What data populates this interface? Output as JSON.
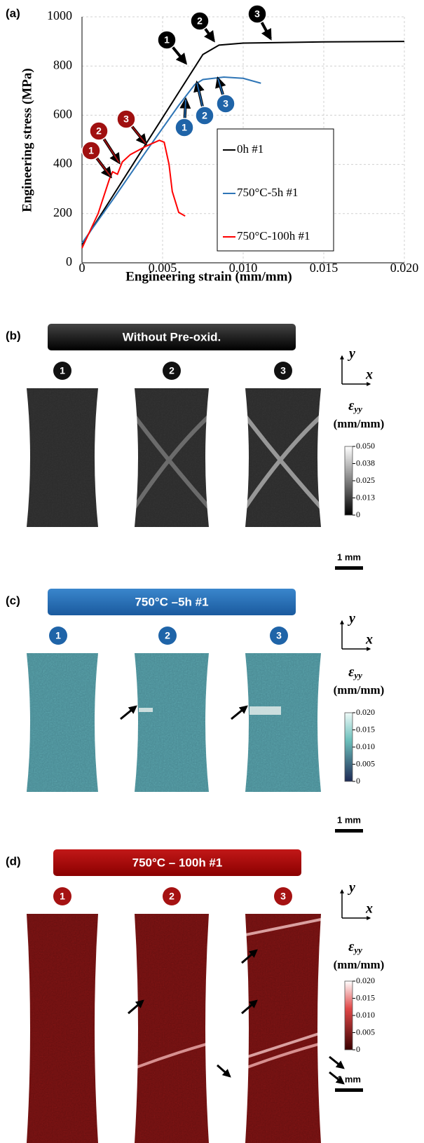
{
  "chart_data": {
    "type": "line",
    "label": "(a)",
    "x_label": "Engineering strain (mm/mm)",
    "y_label": "Engineering stress (MPa)",
    "xlim": [
      0,
      0.02
    ],
    "ylim": [
      0,
      1000
    ],
    "xticks": [
      0,
      0.005,
      {
        "value": 0.01,
        "label": "0.010"
      },
      0.015,
      {
        "value": 0.02,
        "label": "0.020"
      }
    ],
    "yticks": [
      0,
      200,
      400,
      600,
      800,
      1000
    ],
    "grid": true,
    "legend": "lower right",
    "series": [
      {
        "name": "0h #1",
        "color": "#000000",
        "markers": [
          "1",
          "2",
          "3"
        ],
        "x": [
          0,
          0.002,
          0.004,
          0.006,
          0.0075,
          0.0085,
          0.01,
          0.015,
          0.02
        ],
        "values": [
          75,
          281,
          487,
          693,
          847,
          885,
          893,
          898,
          900
        ]
      },
      {
        "name": "750°C-5h #1",
        "color": "#2e75b6",
        "markers": [
          "1",
          "2",
          "3"
        ],
        "x": [
          0,
          0.002,
          0.004,
          0.006,
          0.007,
          0.0075,
          0.0088,
          0.01,
          0.0111
        ],
        "values": [
          80,
          265,
          455,
          640,
          725,
          745,
          755,
          750,
          730
        ]
      },
      {
        "name": "750°C-100h #1",
        "color": "#ff0000",
        "markers": [
          "1",
          "2",
          "3"
        ],
        "x": [
          0,
          0.001,
          0.0017,
          0.0019,
          0.0022,
          0.0025,
          0.003,
          0.004,
          0.0048,
          0.0051,
          0.0054,
          0.0056,
          0.006,
          0.0064
        ],
        "values": [
          60,
          200,
          340,
          370,
          360,
          410,
          440,
          475,
          498,
          490,
          400,
          290,
          205,
          190
        ]
      }
    ]
  },
  "panels": [
    {
      "label": "(b)",
      "title": "Without Pre-oxid.",
      "steps": [
        "1",
        "2",
        "3"
      ],
      "axes": [
        "y",
        "x"
      ],
      "symbol": "ε",
      "subscript": "yy",
      "unit": "(mm/mm)",
      "colorbar_ticks": [
        "0.050",
        "0.038",
        "0.025",
        "0.013",
        "0"
      ],
      "scale_bar": "1 mm"
    },
    {
      "label": "(c)",
      "title": "750°C –5h #1",
      "steps": [
        "1",
        "2",
        "3"
      ],
      "axes": [
        "y",
        "x"
      ],
      "symbol": "ε",
      "subscript": "yy",
      "unit": "(mm/mm)",
      "colorbar_ticks": [
        "0.020",
        "0.015",
        "0.010",
        "0.005",
        "0"
      ],
      "scale_bar": "1 mm"
    },
    {
      "label": "(d)",
      "title": "750°C – 100h #1",
      "steps": [
        "1",
        "2",
        "3"
      ],
      "axes": [
        "y",
        "x"
      ],
      "symbol": "ε",
      "subscript": "yy",
      "unit": "(mm/mm)",
      "colorbar_ticks": [
        "0.020",
        "0.015",
        "0.010",
        "0.005",
        "0"
      ],
      "scale_bar": "1 mm"
    }
  ]
}
